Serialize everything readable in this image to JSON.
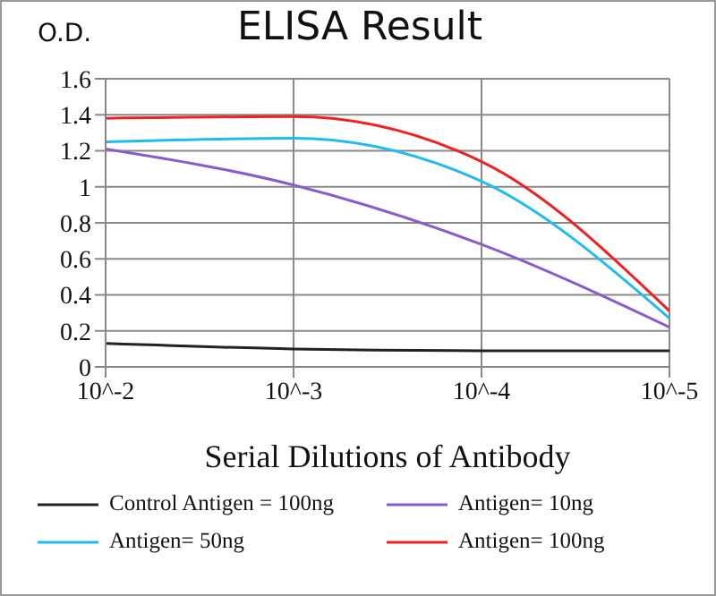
{
  "chart_data": {
    "type": "line",
    "title": "ELISA Result",
    "ylabel": "O.D.",
    "xlabel": "Serial Dilutions  of Antibody",
    "categories": [
      "10^-2",
      "10^-3",
      "10^-4",
      "10^-5"
    ],
    "ylim": [
      0,
      1.6
    ],
    "yticks": [
      0,
      0.2,
      0.4,
      0.6,
      0.8,
      1,
      1.2,
      1.4,
      1.6
    ],
    "series": [
      {
        "name": "Control Antigen = 100ng",
        "color": "#222222",
        "values": [
          0.13,
          0.1,
          0.09,
          0.09
        ]
      },
      {
        "name": "Antigen= 10ng",
        "color": "#8a5cc8",
        "values": [
          1.21,
          1.01,
          0.68,
          0.22
        ]
      },
      {
        "name": "Antigen= 50ng",
        "color": "#22bbee",
        "values": [
          1.25,
          1.27,
          1.03,
          0.27
        ]
      },
      {
        "name": "Antigen= 100ng",
        "color": "#ee2222",
        "values": [
          1.38,
          1.39,
          1.14,
          0.31
        ]
      }
    ],
    "grid": true,
    "legend": "bottom",
    "marker": "none",
    "line_style": "solid"
  }
}
